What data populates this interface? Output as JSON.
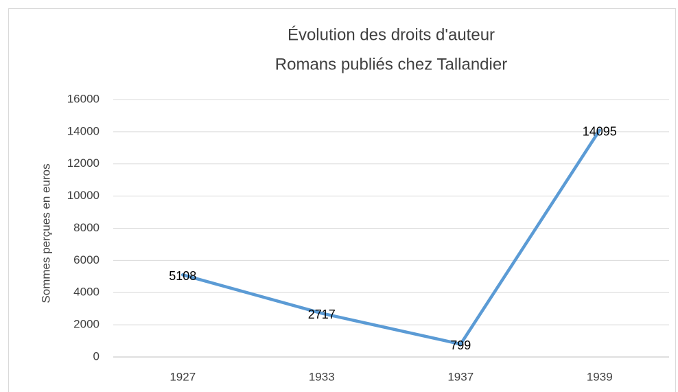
{
  "chart_data": {
    "type": "line",
    "title": [
      "Évolution des droits d'auteur",
      "Romans publiés chez Tallandier"
    ],
    "y_label": "Sommes perçues en euros",
    "categories": [
      "1927",
      "1933",
      "1937",
      "1939"
    ],
    "series": [
      {
        "name": "Sommes perçues en euros",
        "color": "#5b9bd5",
        "values": [
          5108,
          2717,
          799,
          14095
        ]
      }
    ],
    "ylim": [
      0,
      16000
    ],
    "yticks": [
      0,
      2000,
      4000,
      6000,
      8000,
      10000,
      12000,
      14000,
      16000
    ],
    "grid": true,
    "data_labels": true
  }
}
